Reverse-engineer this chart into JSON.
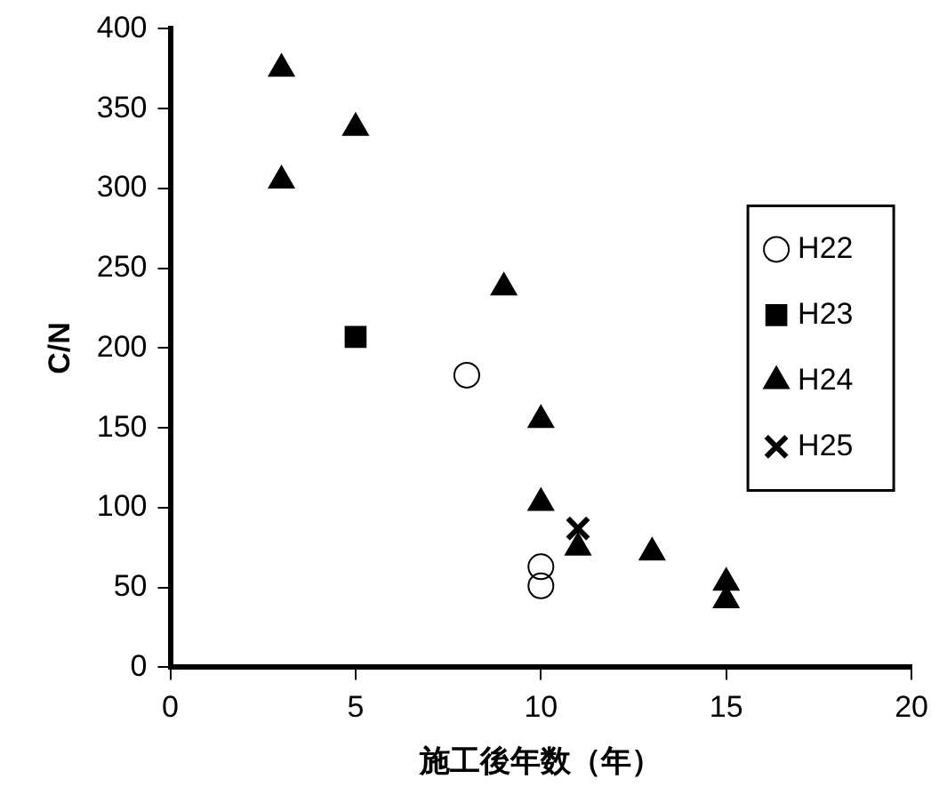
{
  "chart_data": {
    "type": "scatter",
    "xlabel": "施工後年数（年）",
    "ylabel": "C/N",
    "xlim": [
      0,
      20
    ],
    "xticks": [
      0,
      5,
      10,
      15,
      20
    ],
    "ylim": [
      0,
      400
    ],
    "yticks": [
      0,
      50,
      100,
      150,
      200,
      250,
      300,
      350,
      400
    ],
    "grid": false,
    "legend": "right",
    "series": [
      {
        "name": "H22",
        "color": "#000000",
        "marker": "circle",
        "x": [
          8,
          10,
          10
        ],
        "values": [
          183,
          63,
          51
        ]
      },
      {
        "name": "H23",
        "color": "#000000",
        "marker": "square",
        "x": [
          5
        ],
        "values": [
          207
        ]
      },
      {
        "name": "H24",
        "color": "#000000",
        "marker": "triangle",
        "x": [
          3,
          3,
          5,
          9,
          10,
          10,
          11,
          13,
          15,
          15
        ],
        "values": [
          375,
          305,
          338,
          238,
          155,
          103,
          75,
          72,
          53,
          42
        ]
      },
      {
        "name": "H25",
        "color": "#000000",
        "marker": "cross",
        "x": [
          11
        ],
        "values": [
          87
        ]
      }
    ]
  }
}
